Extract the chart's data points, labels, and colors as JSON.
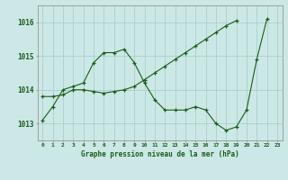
{
  "title": "Graphe pression niveau de la mer (hPa)",
  "background_color": "#cce8e6",
  "grid_color": "#aacfcc",
  "line_color": "#1a5c1a",
  "x_labels": [
    "0",
    "1",
    "2",
    "3",
    "4",
    "5",
    "6",
    "7",
    "8",
    "9",
    "10",
    "11",
    "12",
    "13",
    "14",
    "15",
    "16",
    "17",
    "18",
    "19",
    "20",
    "21",
    "22",
    "23"
  ],
  "series1": [
    1013.1,
    1013.5,
    1014.0,
    1014.1,
    1014.2,
    1014.8,
    1015.1,
    1015.1,
    1015.2,
    1014.8,
    1014.2,
    1013.7,
    1013.4,
    1013.4,
    1013.4,
    1013.5,
    1013.4,
    1013.0,
    1012.8,
    1012.9,
    1013.4,
    1014.9,
    1016.1,
    null
  ],
  "series2": [
    1013.8,
    1013.8,
    1013.85,
    1014.0,
    1014.0,
    1013.95,
    1013.9,
    1013.95,
    1014.0,
    1014.1,
    1014.3,
    1014.5,
    1014.7,
    1014.9,
    1015.1,
    1015.3,
    1015.5,
    1015.7,
    1015.9,
    1016.05,
    null,
    null,
    null,
    null
  ],
  "ylim": [
    1012.5,
    1016.5
  ],
  "yticks": [
    1013,
    1014,
    1015,
    1016
  ],
  "xlim": [
    -0.5,
    23.5
  ],
  "figsize": [
    3.2,
    2.0
  ],
  "dpi": 100
}
